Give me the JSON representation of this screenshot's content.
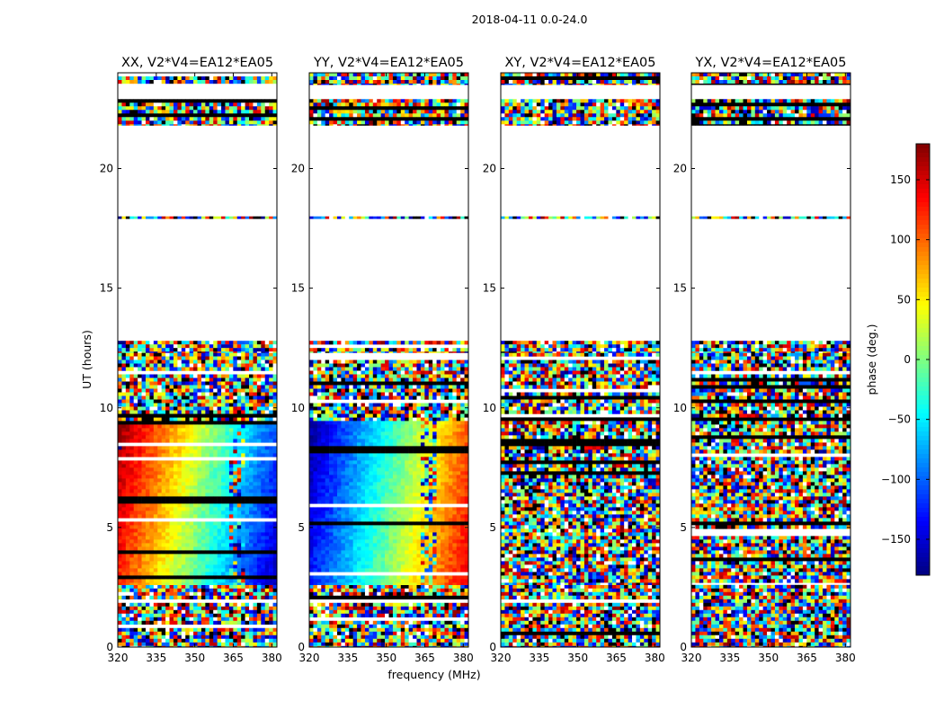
{
  "figure": {
    "suptitle": "2018-04-11 0.0-24.0"
  },
  "chart_data": {
    "type": "heatmap",
    "xlabel": "frequency (MHz)",
    "ylabel": "UT (hours)",
    "xlim": [
      320,
      382
    ],
    "ylim": [
      0,
      24
    ],
    "xticks": [
      320,
      335,
      350,
      365,
      380
    ],
    "yticks": [
      0,
      5,
      10,
      15,
      20
    ],
    "colormap": "jet",
    "colorbar": {
      "label": "phase (deg.)",
      "range": [
        -180,
        180
      ],
      "ticks": [
        -150,
        -100,
        -50,
        0,
        50,
        100,
        150
      ],
      "tick_labels": [
        "−150",
        "−100",
        "−50",
        "0",
        "50",
        "100",
        "150"
      ]
    },
    "panels": [
      {
        "title": "XX, V2*V4=EA12*EA05",
        "product": "XX"
      },
      {
        "title": "YY, V2*V4=EA12*EA05",
        "product": "YY"
      },
      {
        "title": "XY, V2*V4=EA12*EA05",
        "product": "XY"
      },
      {
        "title": "YX, V2*V4=EA12*EA05",
        "product": "YX"
      }
    ],
    "data_segments_hours": [
      [
        0.0,
        2.6
      ],
      [
        2.6,
        9.6
      ],
      [
        9.6,
        12.3
      ],
      [
        12.3,
        12.8
      ],
      [
        17.9,
        18.0
      ],
      [
        21.8,
        22.9
      ],
      [
        23.5,
        24.0
      ]
    ]
  }
}
